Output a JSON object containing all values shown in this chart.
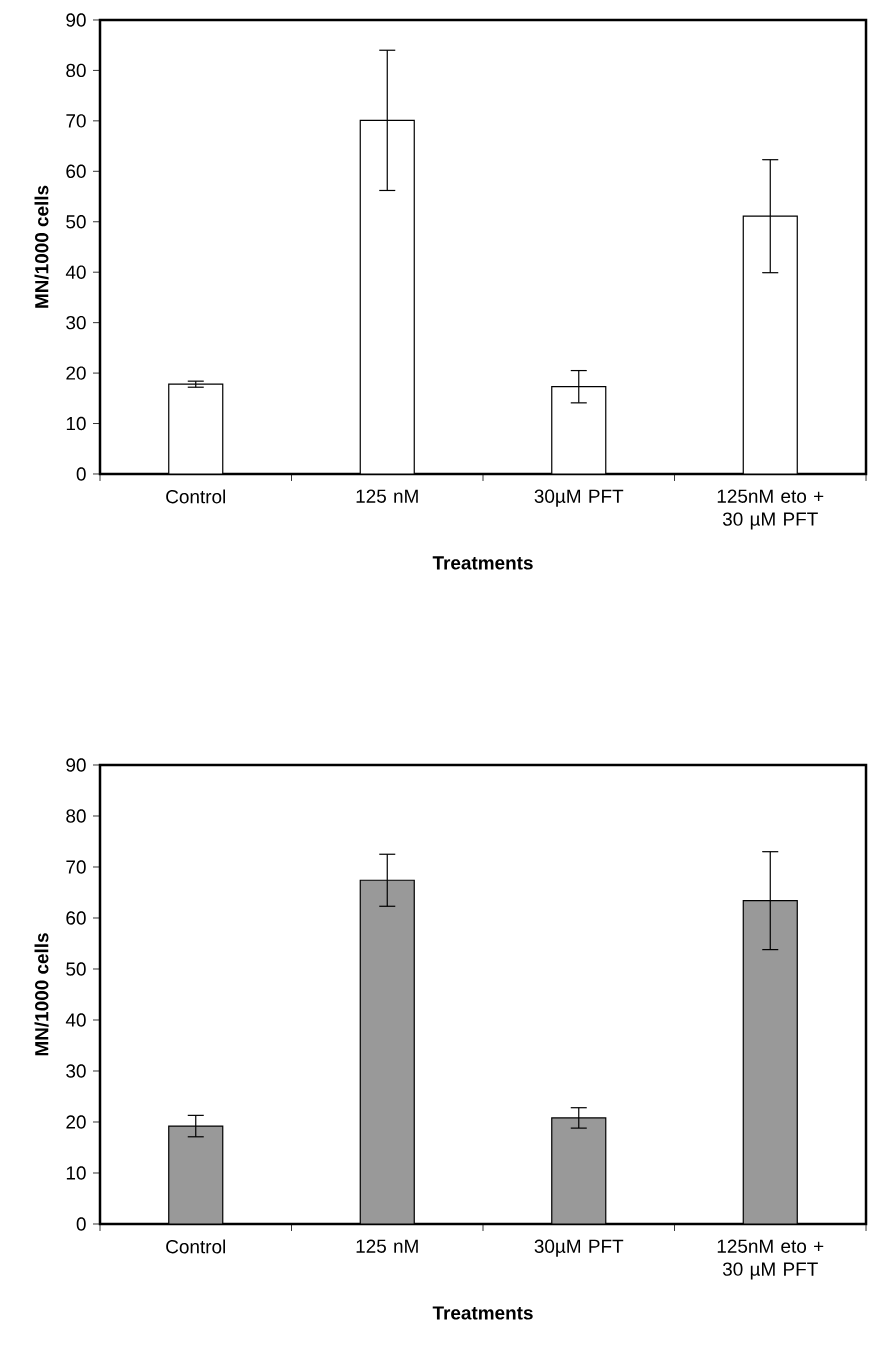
{
  "chart_data": [
    {
      "type": "bar",
      "categories": [
        "Control",
        "125 nM",
        "30µM PFT",
        "125nM eto + 30 µM PFT"
      ],
      "xlabel": "Treatments",
      "ylabel": "MN/1000 cells",
      "values": [
        17.8,
        70.1,
        17.3,
        51.1
      ],
      "errors": [
        0.6,
        13.9,
        3.2,
        11.2
      ],
      "color": "#ffffff",
      "ylim": [
        0,
        90
      ],
      "yticks": [
        0,
        10,
        20,
        30,
        40,
        50,
        60,
        70,
        80,
        90
      ]
    },
    {
      "type": "bar",
      "categories": [
        "Control",
        "125 nM",
        "30µM PFT",
        "125nM eto + 30 µM PFT"
      ],
      "xlabel": "Treatments",
      "ylabel": "MN/1000 cells",
      "values": [
        19.2,
        67.4,
        20.8,
        63.4
      ],
      "errors": [
        2.1,
        5.1,
        2.0,
        9.6
      ],
      "color": "#999999",
      "ylim": [
        0,
        90
      ],
      "yticks": [
        0,
        10,
        20,
        30,
        40,
        50,
        60,
        70,
        80,
        90
      ]
    }
  ]
}
